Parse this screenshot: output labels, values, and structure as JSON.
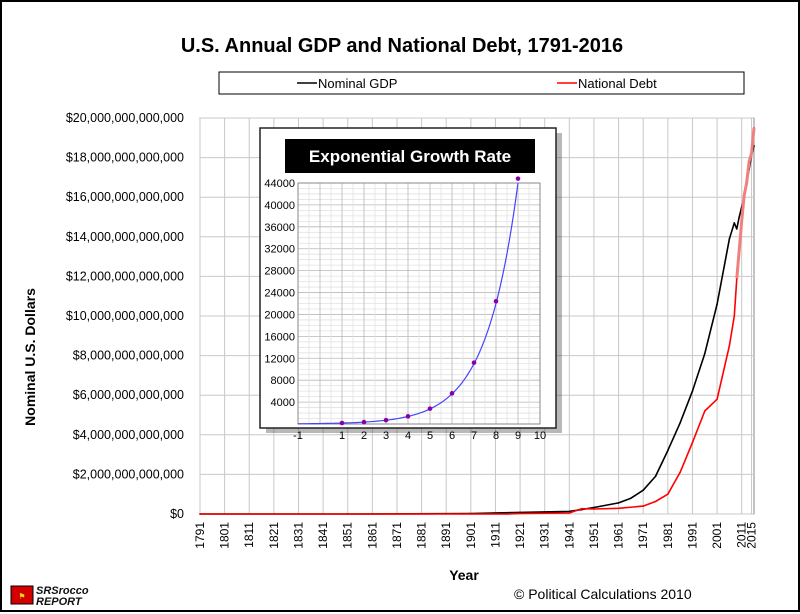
{
  "chart_data": [
    {
      "type": "line",
      "title": "U.S. Annual GDP and National Debt, 1791-2016",
      "xlabel": "Year",
      "ylabel": "Nominal U.S. Dollars",
      "xlim": [
        1791,
        2016
      ],
      "ylim": [
        0,
        20000000000000
      ],
      "x_ticks": [
        "1791",
        "1801",
        "1811",
        "1821",
        "1831",
        "1841",
        "1851",
        "1861",
        "1871",
        "1881",
        "1891",
        "1901",
        "1911",
        "1921",
        "1931",
        "1941",
        "1951",
        "1961",
        "1971",
        "1981",
        "1991",
        "2001",
        "2011",
        "2015"
      ],
      "y_ticks": [
        "$0",
        "$2,000,000,000,000",
        "$4,000,000,000,000",
        "$6,000,000,000,000",
        "$8,000,000,000,000",
        "$10,000,000,000,000",
        "$12,000,000,000,000",
        "$14,000,000,000,000",
        "$16,000,000,000,000",
        "$18,000,000,000,000",
        "$20,000,000,000,000"
      ],
      "legend": [
        "Nominal GDP",
        "National Debt"
      ],
      "legend_position": "top",
      "series": [
        {
          "name": "Nominal GDP",
          "color": "#000000",
          "x": [
            1791,
            1851,
            1901,
            1921,
            1941,
            1946,
            1951,
            1961,
            1966,
            1971,
            1976,
            1981,
            1986,
            1991,
            1996,
            2001,
            2006,
            2008,
            2009,
            2010,
            2011,
            2012,
            2013,
            2014,
            2015,
            2016
          ],
          "values": [
            0,
            0,
            20000000000,
            80000000000,
            130000000000,
            220000000000,
            330000000000,
            560000000000,
            800000000000,
            1200000000000,
            1900000000000,
            3200000000000,
            4600000000000,
            6200000000000,
            8100000000000,
            10600000000000,
            13900000000000,
            14700000000000,
            14400000000000,
            15000000000000,
            15500000000000,
            16000000000000,
            16700000000000,
            17400000000000,
            18100000000000,
            18600000000000
          ]
        },
        {
          "name": "National Debt",
          "color": "#ff0000",
          "x": [
            1791,
            1861,
            1866,
            1901,
            1916,
            1921,
            1941,
            1946,
            1951,
            1961,
            1971,
            1976,
            1981,
            1986,
            1991,
            1996,
            2001,
            2006,
            2008,
            2009,
            2011,
            2012,
            2013,
            2014,
            2015,
            2016
          ],
          "values": [
            0,
            0,
            3000000000,
            2000000000,
            3000000000,
            24000000000,
            49000000000,
            270000000000,
            255000000000,
            290000000000,
            400000000000,
            630000000000,
            1000000000000,
            2100000000000,
            3600000000000,
            5200000000000,
            5800000000000,
            8500000000000,
            10000000000000,
            11900000000000,
            14800000000000,
            16100000000000,
            16700000000000,
            17800000000000,
            18200000000000,
            19500000000000
          ]
        }
      ]
    },
    {
      "type": "line",
      "title": "Exponential Growth Rate",
      "xlim": [
        -1,
        10
      ],
      "ylim": [
        0,
        44000
      ],
      "x_ticks": [
        "-1",
        "1",
        "2",
        "3",
        "4",
        "5",
        "6",
        "7",
        "8",
        "9",
        "10"
      ],
      "y_ticks": [
        "4000",
        "8000",
        "12000",
        "16000",
        "20000",
        "24000",
        "28000",
        "32000",
        "36000",
        "40000",
        "44000"
      ],
      "series": [
        {
          "name": "Exponential",
          "color": "#4444ff",
          "marker_color": "#8800aa",
          "x": [
            1,
            2,
            3,
            4,
            5,
            6,
            7,
            8,
            9
          ],
          "values": [
            172,
            350,
            700,
            1400,
            2800,
            5600,
            11200,
            22400,
            44800
          ]
        }
      ]
    }
  ],
  "credit": "© Political Calculations 2010",
  "logo": {
    "line1": "SRSrocco",
    "line2": "REPORT"
  }
}
